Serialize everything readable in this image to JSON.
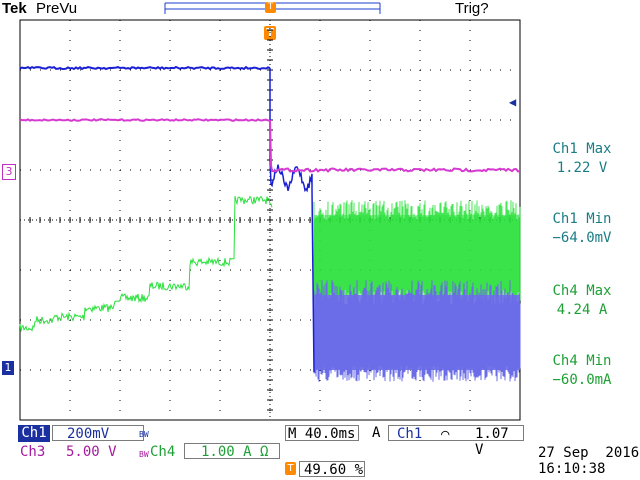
{
  "header": {
    "brand": "Tek",
    "mode": "PreVu",
    "trigger_status": "Trig?"
  },
  "trigger_marker": "T",
  "channel_markers": {
    "ch3": "3",
    "ch1": "1",
    "ch1_level": "◀"
  },
  "measurements": [
    {
      "label": "Ch1 Max",
      "value": "1.22 V",
      "channel": "ch1"
    },
    {
      "label": "Ch1 Min",
      "value": "−64.0mV",
      "channel": "ch1"
    },
    {
      "label": "Ch4 Max",
      "value": "4.24 A",
      "channel": "ch4"
    },
    {
      "label": "Ch4 Min",
      "value": "−60.0mA",
      "channel": "ch4"
    }
  ],
  "status_bar": {
    "ch1_label": "Ch1",
    "ch1_scale": "200mV",
    "bw_mark": "BW",
    "ch3_label": "Ch3",
    "ch3_scale": "5.00 V",
    "ch4_label": "Ch4",
    "ch4_scale": "1.00 A Ω",
    "timebase": "M 40.0ms",
    "acq": "A",
    "trig_source": "Ch1",
    "trig_slope": "⌒",
    "trig_level": "1.07 V",
    "trig_position": "49.60 %",
    "date": "27 Sep  2016",
    "time": "16:10:38"
  },
  "colors": {
    "ch1": "#1a1fd6",
    "ch3": "#d63ad0",
    "ch4": "#28e03a",
    "grid": "#000000",
    "meas_ch1": "#1b7d84",
    "meas_ch4": "#1fa036",
    "trigger": "#ff8a00"
  }
}
